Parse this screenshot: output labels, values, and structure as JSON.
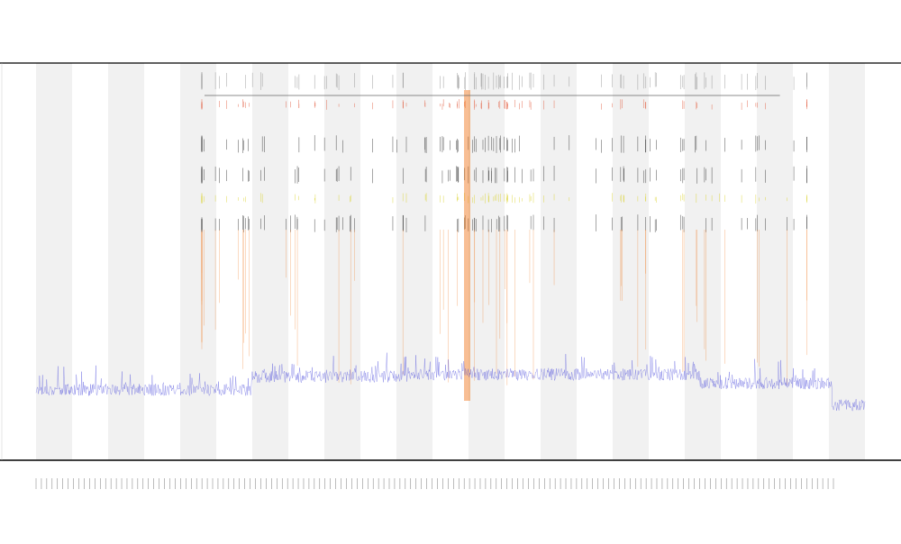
{
  "chart_data": {
    "type": "line",
    "title": "",
    "subtitle_lines": [],
    "xlabel": "",
    "ylabel": "",
    "legend_position": "top-left",
    "grid": false,
    "band_count": 23,
    "band_start_shaded": true,
    "colors": {
      "baseline": "#3c3cd8",
      "band": "#f1f1f1",
      "axis": "#000000",
      "spike_black": "#222222",
      "spike_red": "#e05030",
      "spike_orange": "#f07a20",
      "spike_yellow": "#d8d020",
      "spike_grey": "#888888"
    },
    "legend": [],
    "series": [
      {
        "name": "",
        "level_segments": [
          {
            "x0": 0.0,
            "x1": 0.26,
            "level": 0.1
          },
          {
            "x0": 0.26,
            "x1": 0.45,
            "level": 0.16
          },
          {
            "x0": 0.45,
            "x1": 0.8,
            "level": 0.17
          },
          {
            "x0": 0.8,
            "x1": 0.96,
            "level": 0.13
          },
          {
            "x0": 0.96,
            "x1": 1.0,
            "level": 0.03
          }
        ],
        "noise_amplitude": 0.055,
        "seed": 17
      }
    ],
    "event_region": {
      "x0": 0.2,
      "x1": 0.93
    },
    "hotspot_x": 0.52,
    "events_seed": 91,
    "event_count": 150
  }
}
